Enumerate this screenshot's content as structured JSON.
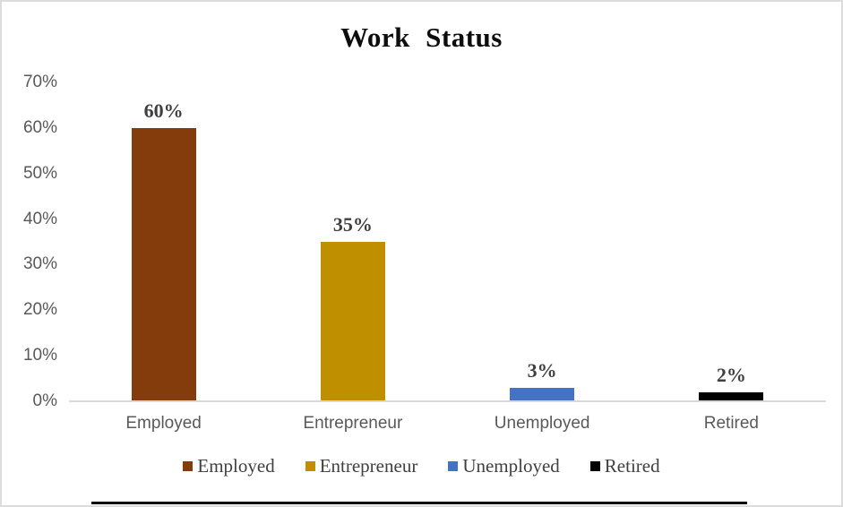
{
  "chart_data": {
    "type": "bar",
    "title": "Work Status",
    "categories": [
      "Employed",
      "Entrepreneur",
      "Unemployed",
      "Retired"
    ],
    "values": [
      60,
      35,
      3,
      2
    ],
    "value_labels": [
      "60%",
      "35%",
      "3%",
      "2%"
    ],
    "bar_colors": [
      "#843C0C",
      "#BF8F00",
      "#4472C4",
      "#000000"
    ],
    "xlabel": "",
    "ylabel": "",
    "ylim": [
      0,
      70
    ],
    "ytick_values": [
      0,
      10,
      20,
      30,
      40,
      50,
      60,
      70
    ],
    "ytick_labels": [
      "0%",
      "10%",
      "20%",
      "30%",
      "40%",
      "50%",
      "60%",
      "70%"
    ],
    "grid": false,
    "legend": {
      "position": "bottom",
      "entries": [
        {
          "label": "Employed",
          "color": "#843C0C"
        },
        {
          "label": "Entrepreneur",
          "color": "#BF8F00"
        },
        {
          "label": "Unemployed",
          "color": "#4472C4"
        },
        {
          "label": "Retired",
          "color": "#000000"
        }
      ]
    }
  },
  "colors": {
    "axis_text": "#595959",
    "axis_line": "#D9D9D9",
    "data_label": "#3F3F3F",
    "title_text": "#0D0D0D",
    "frame_border": "#DCDCDC",
    "bottom_rule": "#000000",
    "background": "#FFFFFF"
  }
}
